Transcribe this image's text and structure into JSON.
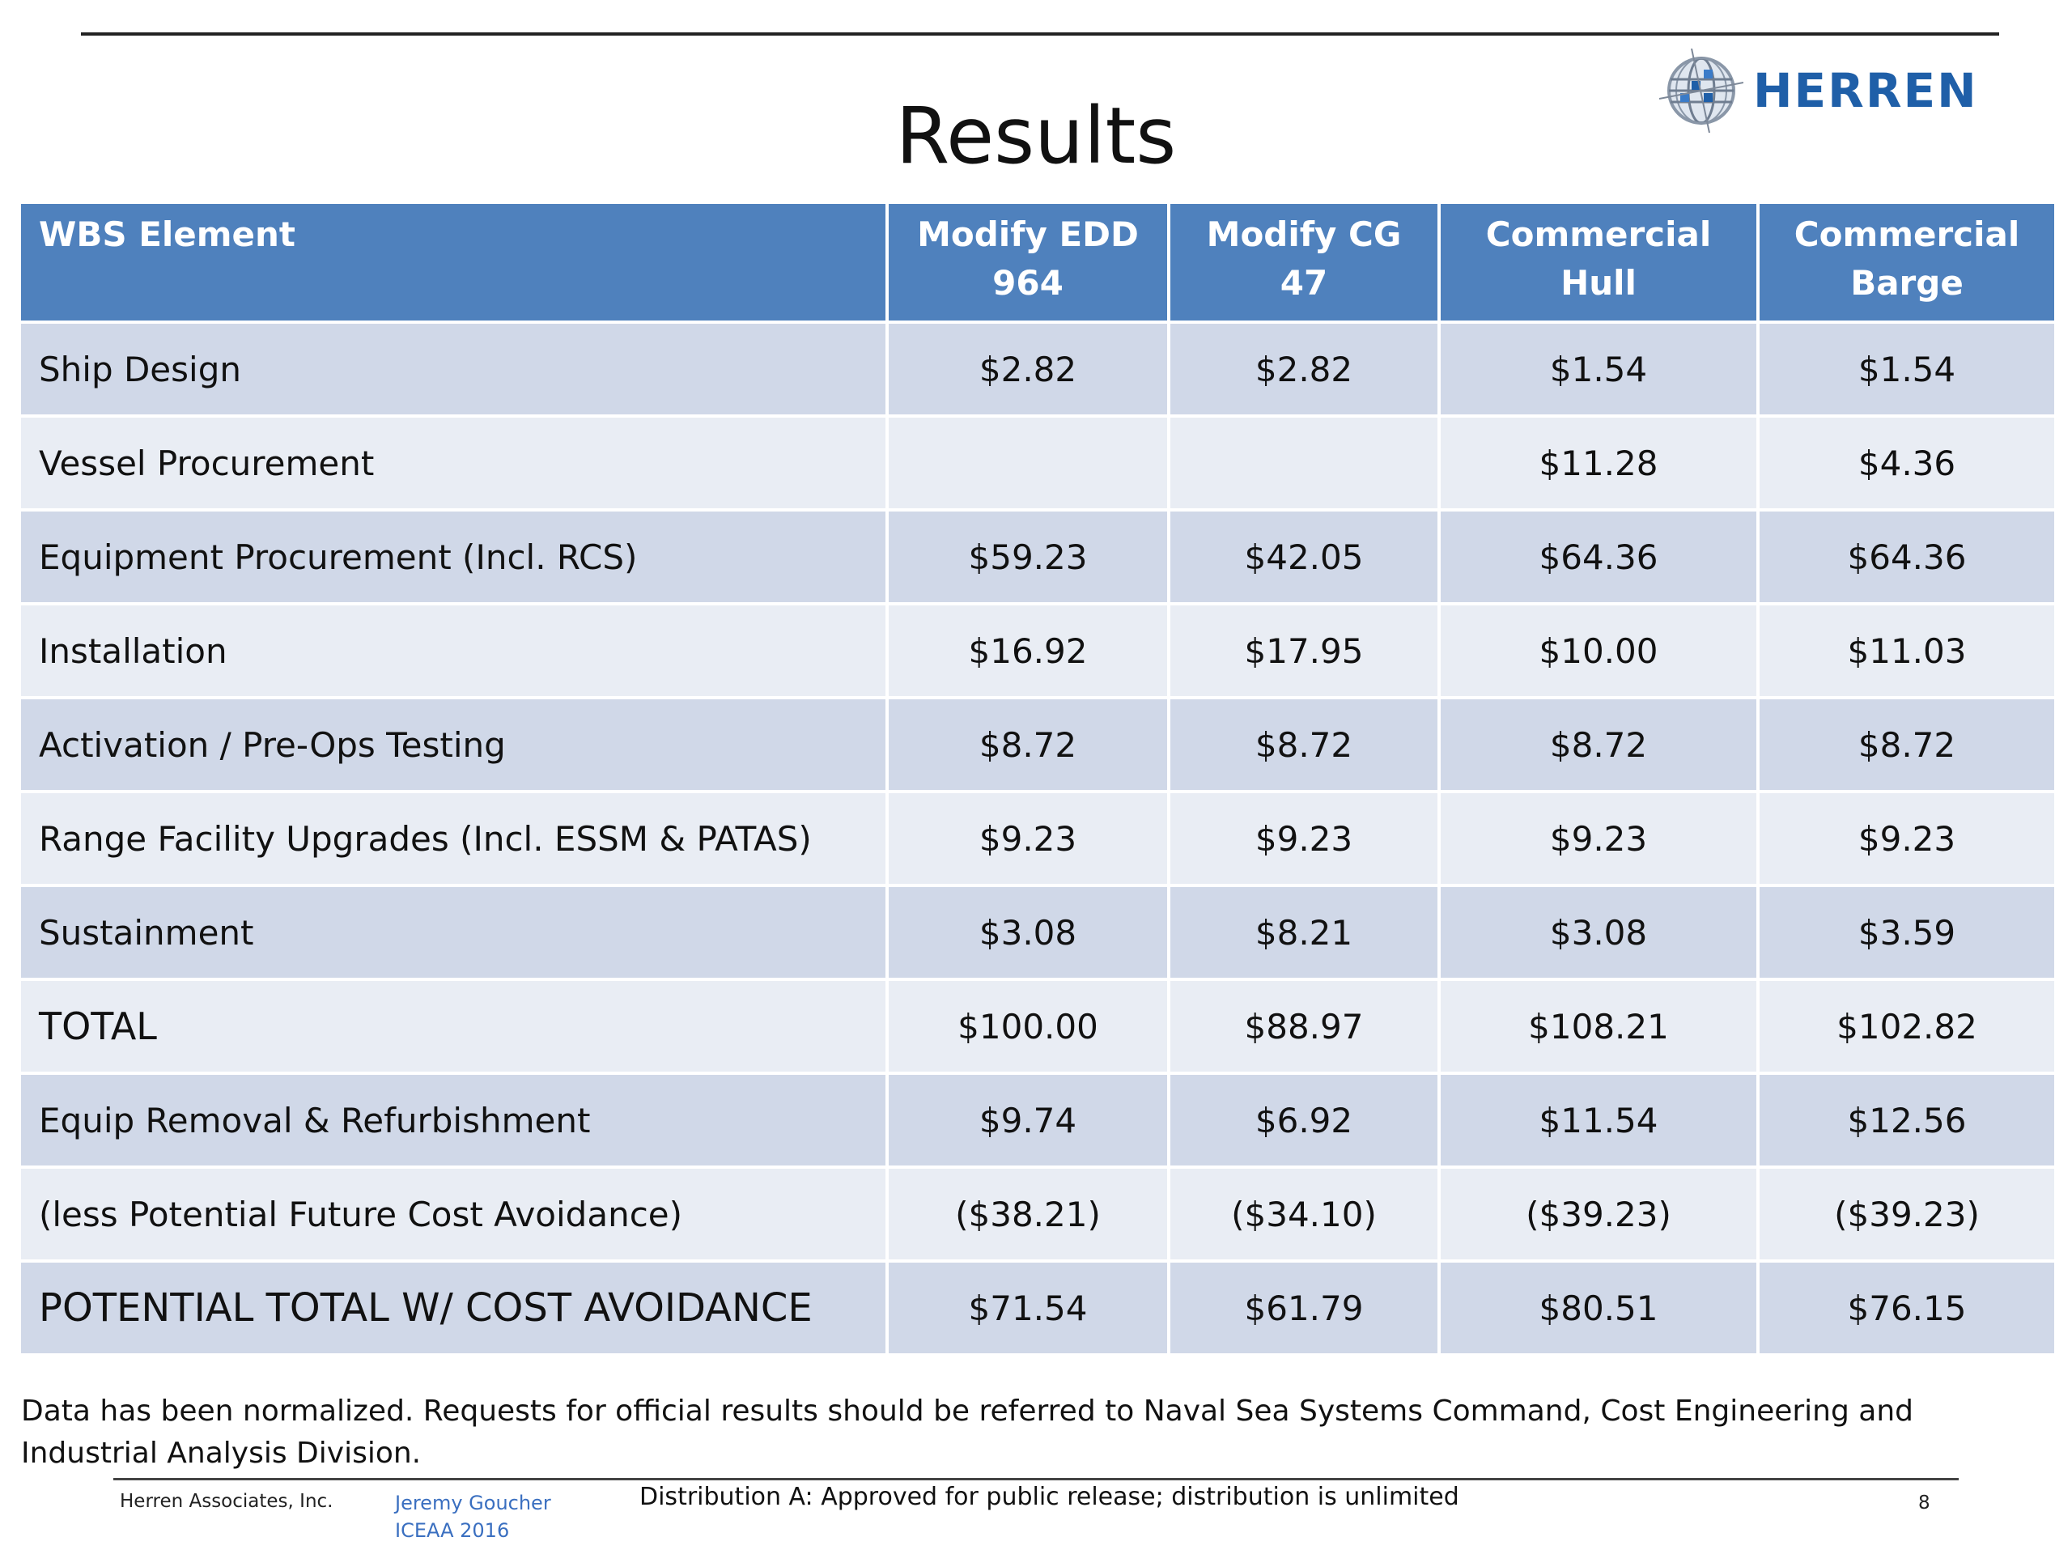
{
  "slide": {
    "title": "Results",
    "logo_text": "HERREN",
    "brand_color": "#1f5fa8",
    "header_color": "#4f81bd",
    "row_odd_color": "#d0d8e8",
    "row_even_color": "#e9edf4"
  },
  "table": {
    "headers": [
      "WBS Element",
      "Modify EDD 964",
      "Modify CG 47",
      "Commercial Hull",
      "Commercial Barge"
    ],
    "rows": [
      [
        "Ship Design",
        "$2.82",
        "$2.82",
        "$1.54",
        "$1.54"
      ],
      [
        "Vessel Procurement",
        "",
        "",
        "$11.28",
        "$4.36"
      ],
      [
        "Equipment Procurement (Incl. RCS)",
        "$59.23",
        "$42.05",
        "$64.36",
        "$64.36"
      ],
      [
        "Installation",
        "$16.92",
        "$17.95",
        "$10.00",
        "$11.03"
      ],
      [
        "Activation / Pre-Ops Testing",
        "$8.72",
        "$8.72",
        "$8.72",
        "$8.72"
      ],
      [
        "Range Facility Upgrades (Incl. ESSM & PATAS)",
        "$9.23",
        "$9.23",
        "$9.23",
        "$9.23"
      ],
      [
        "Sustainment",
        "$3.08",
        "$8.21",
        "$3.08",
        "$3.59"
      ],
      [
        "TOTAL",
        "$100.00",
        "$88.97",
        "$108.21",
        "$102.82"
      ],
      [
        "Equip Removal & Refurbishment",
        "$9.74",
        "$6.92",
        "$11.54",
        "$12.56"
      ],
      [
        "(less Potential Future Cost Avoidance)",
        "($38.21)",
        "($34.10)",
        "($39.23)",
        "($39.23)"
      ],
      [
        "POTENTIAL TOTAL W/ COST AVOIDANCE",
        "$71.54",
        "$61.79",
        "$80.51",
        "$76.15"
      ]
    ]
  },
  "note": "Data has been normalized. Requests for official results should be referred to Naval Sea Systems Command, Cost Engineering and Industrial Analysis Division.",
  "footer": {
    "company": "Herren Associates, Inc.",
    "author": "Jeremy Goucher",
    "event": "ICEAA 2016",
    "distribution": "Distribution A:  Approved for public release; distribution is unlimited",
    "page_number": "8"
  }
}
